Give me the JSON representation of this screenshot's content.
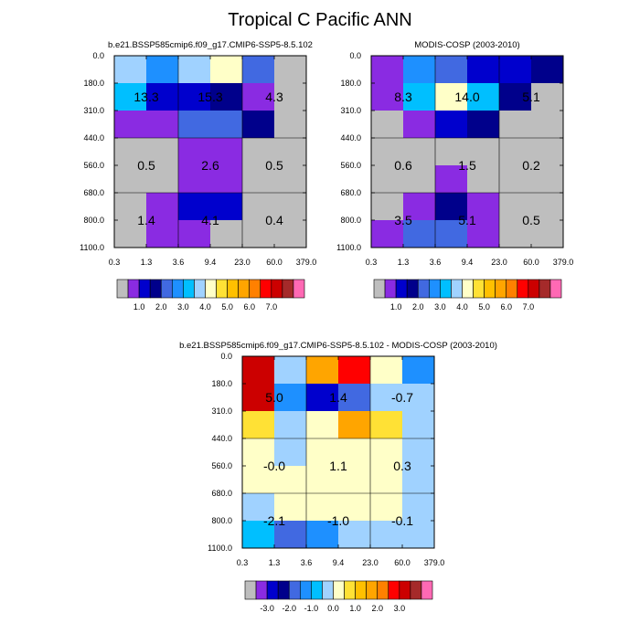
{
  "page": {
    "title": "Tropical C Pacific ANN"
  },
  "chart_data": [
    {
      "type": "heatmap",
      "title": "b.e21.BSSP585cmip6.f09_g17.CMIP6-SSP5-8.5.102",
      "xlabel": "",
      "ylabel": "",
      "x_ticks": [
        "0.3",
        "1.3",
        "3.6",
        "9.4",
        "23.0",
        "60.0",
        "379.0"
      ],
      "y_ticks": [
        "0.0",
        "180.0",
        "310.0",
        "440.0",
        "560.0",
        "680.0",
        "800.0",
        "1100.0"
      ],
      "cells": [
        [
          "#A0D2FF",
          "#1E90FF",
          "#A0D2FF",
          "#FFFFC8",
          "#4169E1",
          "#BEBEBE"
        ],
        [
          "#00BFFF",
          "#0000CD",
          "#0000CD",
          "#00008B",
          "#8A2BE2",
          "#BEBEBE"
        ],
        [
          "#8A2BE2",
          "#8A2BE2",
          "#4169E1",
          "#4169E1",
          "#00008B",
          "#BEBEBE"
        ],
        [
          "#BEBEBE",
          "#BEBEBE",
          "#8A2BE2",
          "#8A2BE2",
          "#BEBEBE",
          "#BEBEBE"
        ],
        [
          "#BEBEBE",
          "#BEBEBE",
          "#8A2BE2",
          "#8A2BE2",
          "#BEBEBE",
          "#BEBEBE"
        ],
        [
          "#BEBEBE",
          "#8A2BE2",
          "#0000CD",
          "#0000CD",
          "#BEBEBE",
          "#BEBEBE"
        ],
        [
          "#BEBEBE",
          "#8A2BE2",
          "#8A2BE2",
          "#BEBEBE",
          "#BEBEBE",
          "#BEBEBE"
        ]
      ],
      "annotations": [
        {
          "text": "13.3",
          "col": 0.5,
          "row": 1.5
        },
        {
          "text": "15.3",
          "col": 2.5,
          "row": 1.5
        },
        {
          "text": "4.3",
          "col": 4.5,
          "row": 1.5
        },
        {
          "text": "0.5",
          "col": 0.5,
          "row": 4
        },
        {
          "text": "2.6",
          "col": 2.5,
          "row": 4
        },
        {
          "text": "0.5",
          "col": 4.5,
          "row": 4
        },
        {
          "text": "1.4",
          "col": 0.5,
          "row": 6
        },
        {
          "text": "4.1",
          "col": 2.5,
          "row": 6
        },
        {
          "text": "0.4",
          "col": 4.5,
          "row": 6
        }
      ],
      "colorbar": {
        "colors": [
          "#BEBEBE",
          "#8A2BE2",
          "#0000CD",
          "#00008B",
          "#4169E1",
          "#1E90FF",
          "#00BFFF",
          "#A0D2FF",
          "#FFFFC8",
          "#FFE135",
          "#FFC000",
          "#FFA500",
          "#FF8000",
          "#FF0000",
          "#CC0000",
          "#A52A2A",
          "#FF69B4"
        ],
        "labels": [
          {
            "text": "1.0",
            "after": 2
          },
          {
            "text": "2.0",
            "after": 4
          },
          {
            "text": "3.0",
            "after": 6
          },
          {
            "text": "4.0",
            "after": 8
          },
          {
            "text": "5.0",
            "after": 10
          },
          {
            "text": "6.0",
            "after": 12
          },
          {
            "text": "7.0",
            "after": 14
          }
        ]
      }
    },
    {
      "type": "heatmap",
      "title": "MODIS-COSP (2003-2010)",
      "xlabel": "",
      "ylabel": "",
      "x_ticks": [
        "0.3",
        "1.3",
        "3.6",
        "9.4",
        "23.0",
        "60.0",
        "379.0"
      ],
      "y_ticks": [
        "0.0",
        "180.0",
        "310.0",
        "440.0",
        "560.0",
        "680.0",
        "800.0",
        "1100.0"
      ],
      "cells": [
        [
          "#8A2BE2",
          "#1E90FF",
          "#4169E1",
          "#0000CD",
          "#0000CD",
          "#00008B"
        ],
        [
          "#8A2BE2",
          "#00BFFF",
          "#FFFFC8",
          "#00BFFF",
          "#00008B",
          "#BEBEBE"
        ],
        [
          "#BEBEBE",
          "#8A2BE2",
          "#0000CD",
          "#00008B",
          "#BEBEBE",
          "#BEBEBE"
        ],
        [
          "#BEBEBE",
          "#BEBEBE",
          "#BEBEBE",
          "#BEBEBE",
          "#BEBEBE",
          "#BEBEBE"
        ],
        [
          "#BEBEBE",
          "#BEBEBE",
          "#8A2BE2",
          "#BEBEBE",
          "#BEBEBE",
          "#BEBEBE"
        ],
        [
          "#BEBEBE",
          "#8A2BE2",
          "#00008B",
          "#8A2BE2",
          "#BEBEBE",
          "#BEBEBE"
        ],
        [
          "#8A2BE2",
          "#4169E1",
          "#4169E1",
          "#8A2BE2",
          "#BEBEBE",
          "#BEBEBE"
        ]
      ],
      "annotations": [
        {
          "text": "8.3",
          "col": 0.5,
          "row": 1.5
        },
        {
          "text": "14.0",
          "col": 2.5,
          "row": 1.5
        },
        {
          "text": "5.1",
          "col": 4.5,
          "row": 1.5
        },
        {
          "text": "0.6",
          "col": 0.5,
          "row": 4
        },
        {
          "text": "1.5",
          "col": 2.5,
          "row": 4
        },
        {
          "text": "0.2",
          "col": 4.5,
          "row": 4
        },
        {
          "text": "3.5",
          "col": 0.5,
          "row": 6
        },
        {
          "text": "5.1",
          "col": 2.5,
          "row": 6
        },
        {
          "text": "0.5",
          "col": 4.5,
          "row": 6
        }
      ],
      "colorbar": {
        "colors": [
          "#BEBEBE",
          "#8A2BE2",
          "#0000CD",
          "#00008B",
          "#4169E1",
          "#1E90FF",
          "#00BFFF",
          "#A0D2FF",
          "#FFFFC8",
          "#FFE135",
          "#FFC000",
          "#FFA500",
          "#FF8000",
          "#FF0000",
          "#CC0000",
          "#A52A2A",
          "#FF69B4"
        ],
        "labels": [
          {
            "text": "1.0",
            "after": 2
          },
          {
            "text": "2.0",
            "after": 4
          },
          {
            "text": "3.0",
            "after": 6
          },
          {
            "text": "4.0",
            "after": 8
          },
          {
            "text": "5.0",
            "after": 10
          },
          {
            "text": "6.0",
            "after": 12
          },
          {
            "text": "7.0",
            "after": 14
          }
        ]
      }
    },
    {
      "type": "heatmap",
      "title": "b.e21.BSSP585cmip6.f09_g17.CMIP6-SSP5-8.5.102 - MODIS-COSP (2003-2010)",
      "xlabel": "",
      "ylabel": "",
      "x_ticks": [
        "0.3",
        "1.3",
        "3.6",
        "9.4",
        "23.0",
        "60.0",
        "379.0"
      ],
      "y_ticks": [
        "0.0",
        "180.0",
        "310.0",
        "440.0",
        "560.0",
        "680.0",
        "800.0",
        "1100.0"
      ],
      "cells": [
        [
          "#CC0000",
          "#A0D2FF",
          "#FFA500",
          "#FF0000",
          "#FFFFC8",
          "#1E90FF"
        ],
        [
          "#CC0000",
          "#1E90FF",
          "#0000CD",
          "#4169E1",
          "#A0D2FF",
          "#A0D2FF"
        ],
        [
          "#FFE135",
          "#A0D2FF",
          "#FFFFC8",
          "#FFA500",
          "#FFE135",
          "#A0D2FF"
        ],
        [
          "#FFFFC8",
          "#A0D2FF",
          "#FFFFC8",
          "#FFFFC8",
          "#FFFFC8",
          "#A0D2FF"
        ],
        [
          "#FFFFC8",
          "#FFFFC8",
          "#FFFFC8",
          "#FFFFC8",
          "#FFFFC8",
          "#A0D2FF"
        ],
        [
          "#A0D2FF",
          "#FFFFC8",
          "#FFFFC8",
          "#FFFFC8",
          "#FFFFC8",
          "#A0D2FF"
        ],
        [
          "#00BFFF",
          "#4169E1",
          "#1E90FF",
          "#A0D2FF",
          "#A0D2FF",
          "#A0D2FF"
        ]
      ],
      "annotations": [
        {
          "text": "5.0",
          "col": 0.5,
          "row": 1.5
        },
        {
          "text": "1.4",
          "col": 2.5,
          "row": 1.5
        },
        {
          "text": "-0.7",
          "col": 4.5,
          "row": 1.5
        },
        {
          "text": "-0.0",
          "col": 0.5,
          "row": 4
        },
        {
          "text": "1.1",
          "col": 2.5,
          "row": 4
        },
        {
          "text": "0.3",
          "col": 4.5,
          "row": 4
        },
        {
          "text": "-2.1",
          "col": 0.5,
          "row": 6
        },
        {
          "text": "-1.0",
          "col": 2.5,
          "row": 6
        },
        {
          "text": "-0.1",
          "col": 4.5,
          "row": 6
        }
      ],
      "colorbar": {
        "colors": [
          "#BEBEBE",
          "#8A2BE2",
          "#0000CD",
          "#00008B",
          "#4169E1",
          "#1E90FF",
          "#00BFFF",
          "#A0D2FF",
          "#FFFFC8",
          "#FFE135",
          "#FFC000",
          "#FFA500",
          "#FF8000",
          "#FF0000",
          "#CC0000",
          "#A52A2A",
          "#FF69B4"
        ],
        "labels": [
          {
            "text": "-3.0",
            "after": 2
          },
          {
            "text": "-2.0",
            "after": 4
          },
          {
            "text": "-1.0",
            "after": 6
          },
          {
            "text": "0.0",
            "after": 8
          },
          {
            "text": "1.0",
            "after": 10
          },
          {
            "text": "2.0",
            "after": 12
          },
          {
            "text": "3.0",
            "after": 14
          }
        ]
      }
    }
  ]
}
